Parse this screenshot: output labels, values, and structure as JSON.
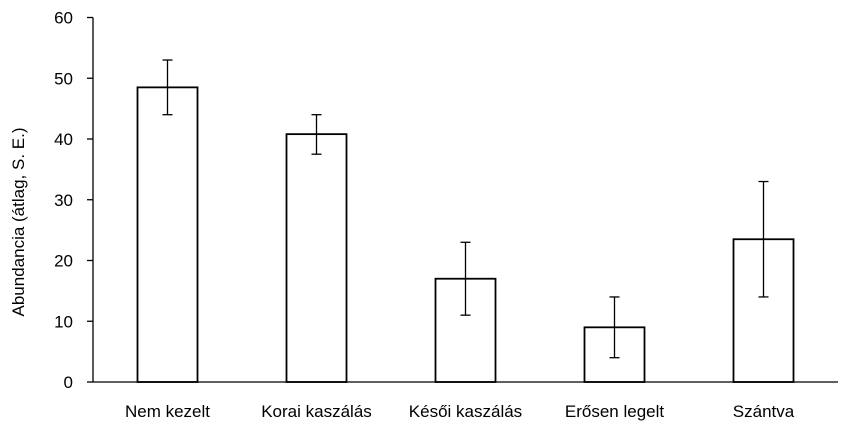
{
  "chart_data": {
    "type": "bar",
    "title": "",
    "xlabel": "",
    "ylabel": "Abundancia (átlag, S. E.)",
    "ylim": [
      0,
      60
    ],
    "yticks": [
      0,
      10,
      20,
      30,
      40,
      50,
      60
    ],
    "grid": false,
    "categories": [
      "Nem kezelt",
      "Korai kaszálás",
      "Késői kaszálás",
      "Erősen legelt",
      "Szántva"
    ],
    "values": [
      48.5,
      40.8,
      17,
      9,
      23.5
    ],
    "error_low": [
      44,
      37.5,
      11,
      4,
      14
    ],
    "error_high": [
      53,
      44,
      23,
      14,
      33
    ],
    "bar_fill": "#ffffff",
    "bar_stroke": "#000000"
  }
}
